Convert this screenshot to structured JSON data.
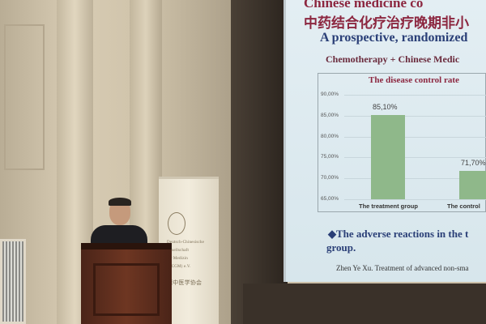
{
  "slide": {
    "title_en_partial": "Chinese medicine co",
    "title_zh_partial": "中药结合化疗治疗晚期非小",
    "subtitle": "A prospective, randomized",
    "heading": "Chemotherapy + Chinese Medic",
    "bullet_line1": "◆The adverse reactions in the t",
    "bullet_line2": "group.",
    "citation": "Zhen Ye Xu. Treatment of advanced non-sma"
  },
  "banner": {
    "lines": [
      "Deutsch-Chinesische",
      "Gesellschaft",
      "für Medizin",
      "(DCGM) e.V.",
      "德中医学协会"
    ]
  },
  "chart_data": {
    "type": "bar",
    "title": "The disease control rate",
    "categories": [
      "The treatment group",
      "The control"
    ],
    "values": [
      85.1,
      71.7
    ],
    "data_labels": [
      "85,10%",
      "71,70%"
    ],
    "yticks": [
      "90,00%",
      "85,00%",
      "80,00%",
      "75,00%",
      "70,00%",
      "65,00%"
    ],
    "ylim": [
      65,
      90
    ],
    "grid": true,
    "bar_color": "#8fb88a"
  }
}
